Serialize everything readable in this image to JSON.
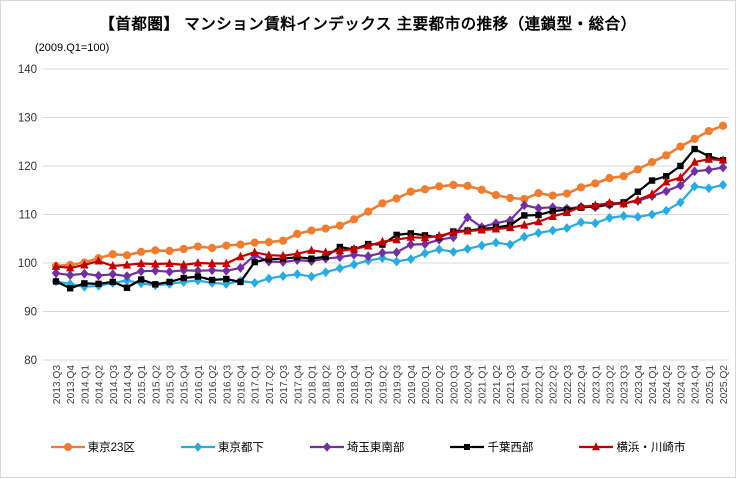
{
  "title": "【首都圏】 マンション賃料インデックス 主要都市の推移（連鎖型・総合）",
  "subtitle": "(2009.Q1=100)",
  "colors": {
    "gridline": "#d9d9d9",
    "axis_text": "#404040",
    "frame_border": "#d9d9d9"
  },
  "chart_data": {
    "type": "line",
    "title": "【首都圏】 マンション賃料インデックス 主要都市の推移（連鎖型・総合）",
    "subtitle": "(2009.Q1=100)",
    "grid": "horizontal",
    "legend_position": "bottom",
    "y_axis": {
      "min": 80,
      "max": 140,
      "step": 10,
      "tick_labels": [
        "80",
        "90",
        "100",
        "110",
        "120",
        "130",
        "140"
      ]
    },
    "categories": [
      "2013.Q3",
      "2013.Q4",
      "2014.Q1",
      "2014.Q2",
      "2014.Q3",
      "2014.Q4",
      "2015.Q1",
      "2015.Q2",
      "2015.Q3",
      "2015.Q4",
      "2016.Q1",
      "2016.Q2",
      "2016.Q3",
      "2016.Q4",
      "2017.Q1",
      "2017.Q2",
      "2017.Q3",
      "2017.Q4",
      "2018.Q1",
      "2018.Q2",
      "2018.Q3",
      "2018.Q4",
      "2019.Q1",
      "2019.Q2",
      "2019.Q3",
      "2019.Q4",
      "2020.Q1",
      "2020.Q2",
      "2020.Q3",
      "2020.Q4",
      "2021.Q1",
      "2021.Q2",
      "2021.Q3",
      "2021.Q4",
      "2022.Q1",
      "2022.Q2",
      "2022.Q3",
      "2022.Q4",
      "2023.Q1",
      "2023.Q2",
      "2023.Q3",
      "2023.Q4",
      "2024.Q1",
      "2024.Q2",
      "2024.Q3",
      "2024.Q4",
      "2025.Q1",
      "2025.Q2"
    ],
    "series": [
      {
        "key": "tokyo-23ku",
        "name": "東京23区",
        "color": "#ED7D31",
        "marker": "circle",
        "values": [
          99.4,
          99.6,
          100.1,
          101.0,
          101.8,
          101.6,
          102.3,
          102.6,
          102.5,
          102.9,
          103.4,
          103.1,
          103.6,
          103.8,
          104.2,
          104.3,
          104.6,
          106.0,
          106.7,
          107.1,
          107.7,
          109.0,
          110.6,
          112.3,
          113.3,
          114.7,
          115.2,
          115.8,
          116.1,
          115.9,
          115.1,
          114.0,
          113.4,
          113.2,
          114.4,
          113.9,
          114.3,
          115.6,
          116.4,
          117.5,
          117.9,
          119.3,
          120.8,
          122.2,
          124.0,
          125.6,
          127.2,
          128.3
        ]
      },
      {
        "key": "tokyo-toka",
        "name": "東京都下",
        "color": "#29ABE2",
        "marker": "diamond",
        "values": [
          96.2,
          95.7,
          95.1,
          95.3,
          95.9,
          96.4,
          95.8,
          95.4,
          95.7,
          96.1,
          96.4,
          95.9,
          95.7,
          96.3,
          95.9,
          96.8,
          97.3,
          97.7,
          97.2,
          98.1,
          98.9,
          99.7,
          100.5,
          101.0,
          100.3,
          100.8,
          102.0,
          102.8,
          102.3,
          102.9,
          103.6,
          104.2,
          103.8,
          105.4,
          106.2,
          106.7,
          107.2,
          108.4,
          108.2,
          109.3,
          109.7,
          109.5,
          110.0,
          110.8,
          112.5,
          115.8,
          115.4,
          116.1
        ]
      },
      {
        "key": "saitama-southeast",
        "name": "埼玉東南部",
        "color": "#7030A0",
        "marker": "diamond",
        "values": [
          97.9,
          97.5,
          97.8,
          97.4,
          97.7,
          97.3,
          98.3,
          98.4,
          98.2,
          98.5,
          98.4,
          98.5,
          98.4,
          99.0,
          101.6,
          100.3,
          100.2,
          100.6,
          100.4,
          100.9,
          101.2,
          101.7,
          101.4,
          102.1,
          102.2,
          103.8,
          103.9,
          104.8,
          105.3,
          109.4,
          107.4,
          108.2,
          108.8,
          111.9,
          111.3,
          111.5,
          111.2,
          111.6,
          111.5,
          112.0,
          112.3,
          112.8,
          113.8,
          114.8,
          116.0,
          118.9,
          119.2,
          119.7
        ]
      },
      {
        "key": "chiba-west",
        "name": "千葉西部",
        "color": "#000000",
        "marker": "square",
        "values": [
          96.2,
          94.8,
          95.8,
          95.7,
          96.1,
          94.9,
          96.6,
          95.6,
          96.1,
          96.9,
          97.2,
          96.5,
          96.7,
          96.1,
          100.2,
          100.8,
          100.9,
          101.2,
          100.9,
          101.3,
          103.3,
          102.8,
          103.9,
          103.8,
          105.8,
          106.1,
          105.7,
          105.3,
          106.5,
          106.7,
          107.0,
          107.3,
          107.8,
          109.8,
          109.9,
          110.7,
          111.0,
          111.4,
          111.7,
          112.1,
          112.5,
          114.7,
          117.0,
          117.9,
          120.0,
          123.5,
          122.0,
          121.2
        ]
      },
      {
        "key": "yokohama-kawasaki",
        "name": "横浜・川崎市",
        "color": "#C00000",
        "marker": "triangle",
        "values": [
          99.3,
          99.0,
          99.6,
          100.4,
          99.4,
          99.6,
          99.9,
          99.8,
          99.9,
          99.6,
          100.0,
          99.9,
          99.9,
          101.3,
          102.2,
          101.6,
          101.5,
          101.9,
          102.6,
          102.2,
          102.5,
          102.9,
          103.5,
          104.4,
          104.8,
          105.3,
          105.2,
          105.6,
          106.3,
          106.6,
          106.8,
          107.0,
          107.3,
          107.8,
          108.5,
          109.6,
          110.4,
          111.6,
          111.9,
          112.4,
          112.2,
          113.0,
          114.2,
          116.7,
          117.6,
          120.8,
          121.4,
          121.2
        ]
      }
    ]
  }
}
